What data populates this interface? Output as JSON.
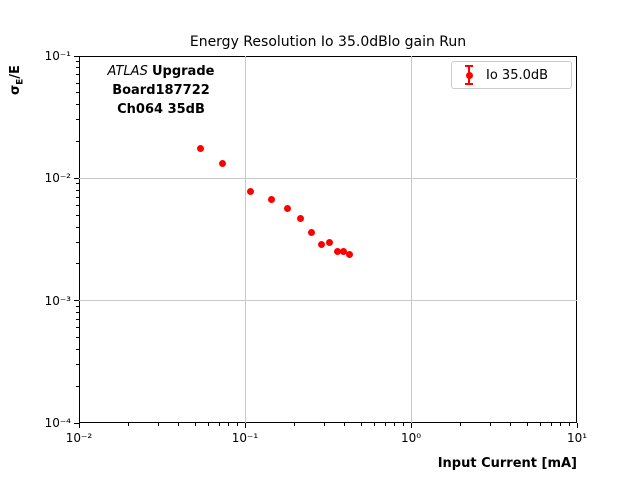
{
  "chart_data": {
    "type": "scatter",
    "title": "Energy Resolution Io 35.0dBlo gain Run",
    "xlabel": "Input Current [mA]",
    "ylabel": {
      "sigma": "σ",
      "sub": "E",
      "rest": "/E"
    },
    "xscale": "log",
    "yscale": "log",
    "xlim": [
      0.01,
      10
    ],
    "ylim": [
      0.0001,
      0.1
    ],
    "grid": "major",
    "x_ticks": [
      {
        "value": 0.01,
        "label": "10⁻²"
      },
      {
        "value": 0.1,
        "label": "10⁻¹"
      },
      {
        "value": 1,
        "label": "10⁰"
      },
      {
        "value": 10,
        "label": "10¹"
      }
    ],
    "y_ticks": [
      {
        "value": 0.1,
        "label": "10⁻¹"
      },
      {
        "value": 0.01,
        "label": "10⁻²"
      },
      {
        "value": 0.001,
        "label": "10⁻³"
      },
      {
        "value": 0.0001,
        "label": "10⁻⁴"
      }
    ],
    "series": [
      {
        "name": "Io 35.0dB",
        "color": "#ff0000",
        "marker": "circle-errorbar",
        "points": [
          [
            0.054,
            0.0175
          ],
          [
            0.073,
            0.0131
          ],
          [
            0.108,
            0.0078
          ],
          [
            0.145,
            0.0067
          ],
          [
            0.181,
            0.0057
          ],
          [
            0.215,
            0.0047
          ],
          [
            0.251,
            0.0036
          ],
          [
            0.29,
            0.0029
          ],
          [
            0.322,
            0.003
          ],
          [
            0.362,
            0.0025
          ],
          [
            0.391,
            0.0025
          ],
          [
            0.425,
            0.0024
          ]
        ]
      }
    ]
  },
  "annotation": {
    "line1_italic": "ATLAS",
    "line1_bold": "Upgrade",
    "line2": "Board187722",
    "line3": "Ch064 35dB"
  },
  "legend": {
    "position": "upper right",
    "entries": [
      {
        "label": "Io 35.0dB",
        "color": "#ff0000",
        "marker": "errorbar-circle"
      }
    ]
  },
  "colors": {
    "series": "#ff0000",
    "grid": "#c8c8c8",
    "spine": "#000000",
    "legend_border": "#cccccc",
    "background": "#ffffff"
  }
}
